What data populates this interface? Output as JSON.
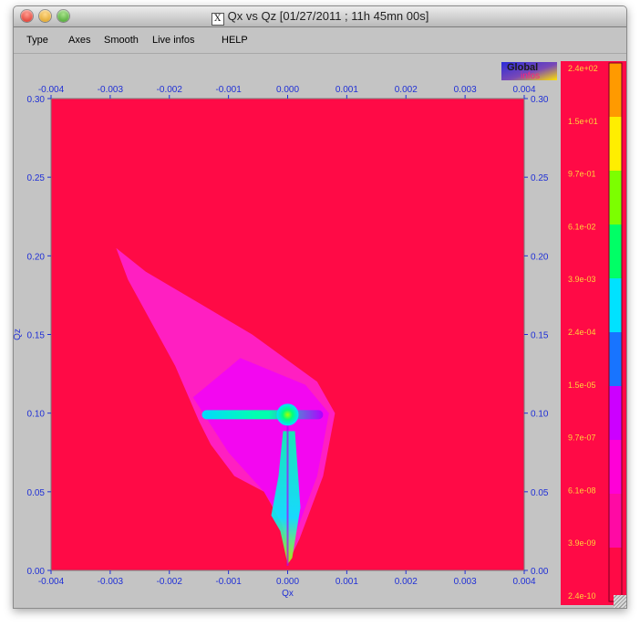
{
  "window": {
    "title": "Qx vs Qz [01/27/2011 ; 11h 45mn 00s]",
    "x11_glyph": "X"
  },
  "menu": [
    "Type",
    "Axes",
    "Smooth",
    "Live infos",
    "HELP"
  ],
  "badge": {
    "line1": "Global",
    "line2": "infos"
  },
  "colors": {
    "background_map": "#ff0a46",
    "axis_text": "#1f2fd6",
    "badge_text_1": "#1a1a1a",
    "badge_text_2": "#ff2277"
  },
  "chart_data": {
    "type": "heatmap",
    "xlabel": "Qx",
    "ylabel": "Qz",
    "xlim": [
      -0.004,
      0.004
    ],
    "ylim": [
      0.0,
      0.3
    ],
    "x_ticks": [
      "-0.004",
      "-0.003",
      "-0.002",
      "-0.001",
      "0.000",
      "0.001",
      "0.002",
      "0.003",
      "0.004"
    ],
    "y_ticks": [
      "0.00",
      "0.05",
      "0.10",
      "0.15",
      "0.20",
      "0.25",
      "0.30"
    ],
    "peak": {
      "qx": 0.0,
      "qz": 0.099
    },
    "colorbar": {
      "scale": "log",
      "labels": [
        "2.4e+02",
        "1.5e+01",
        "9.7e-01",
        "6.1e-02",
        "3.9e-03",
        "2.4e-04",
        "1.5e-05",
        "9.7e-07",
        "6.1e-08",
        "3.9e-09",
        "2.4e-10"
      ],
      "colors": [
        "#ff9a00",
        "#ffee00",
        "#7cff00",
        "#00ff66",
        "#00e2ff",
        "#1874ff",
        "#cc00ff",
        "#ff00d7",
        "#ff0aa4",
        "#ff0a46"
      ]
    }
  }
}
